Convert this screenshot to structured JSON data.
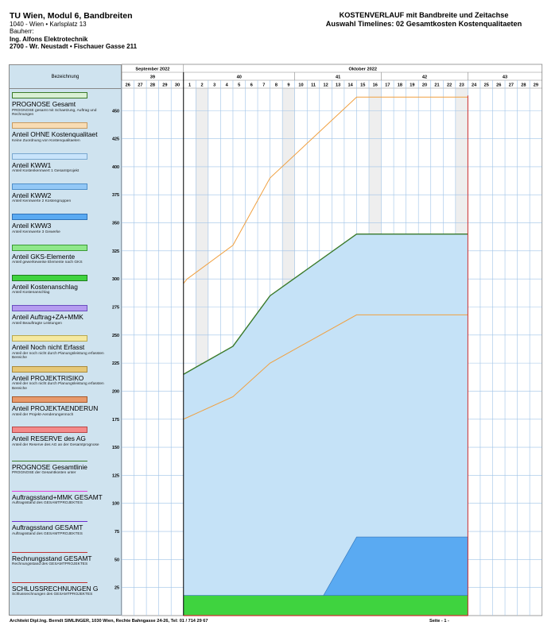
{
  "header": {
    "project": "TU Wien, Modul 6, Bandbreiten",
    "address": "1040 - Wien  •  Karlsplatz 13",
    "owner_label": "Bauherr:",
    "owner": "Ing. Alfons Elektrotechnik",
    "owner_address": "2700 - Wr. Neustadt  •  Fischauer Gasse 211"
  },
  "report": {
    "title": "KOSTENVERLAUF mit Bandbreite und Zeitachse",
    "subtitle": "Auswahl Timelines: 02 Gesamtkosten Kostenqualitaeten"
  },
  "legend": {
    "header": "Bezeichnung",
    "items": [
      {
        "name": "PROGNOSE Gesamt",
        "desc": "PROGNOSE gesamt mit Schaetzung, Auftrag und Rechnungen",
        "kind": "swatch",
        "color": "#d9f0d4",
        "border": "#3a7a2a"
      },
      {
        "name": "Anteil OHNE Kostenqualitaet",
        "desc": "Keine Zuordnung von Kostenqualitaeten",
        "kind": "swatch",
        "color": "#f8dcb4",
        "border": "#c89a60"
      },
      {
        "name": "Anteil KWW1",
        "desc": "Anteil Kostenkennwert 1 Gesamtprojekt",
        "kind": "swatch",
        "color": "#c9e4fb",
        "border": "#7aa8d0"
      },
      {
        "name": "Anteil KWW2",
        "desc": "Anteil Kennwerte 2 Kostengruppen",
        "kind": "swatch",
        "color": "#93c8f6",
        "border": "#4f8fc9"
      },
      {
        "name": "Anteil KWW3",
        "desc": "Anteil Kennwerte 3 Gewerke",
        "kind": "swatch",
        "color": "#5aaaf2",
        "border": "#2f72b8"
      },
      {
        "name": "Anteil GKS-Elemente",
        "desc": "Anteil gewerkeweise Elemente nach GKS",
        "kind": "swatch",
        "color": "#8fe88a",
        "border": "#3a9a36"
      },
      {
        "name": "Anteil Kostenanschlag",
        "desc": "Anteil Kostenanschlag",
        "kind": "swatch",
        "color": "#3fd33f",
        "border": "#1d7d1d"
      },
      {
        "name": "Anteil Auftrag+ZA+MMK",
        "desc": "Anteil Beauftragte Leistungen",
        "kind": "swatch",
        "color": "#b59cf0",
        "border": "#6a4fc0"
      },
      {
        "name": "Anteil Noch nicht Erfasst",
        "desc": "Anteil der noch nicht durch Planungsleistung erfassten Bereiche",
        "kind": "swatch",
        "color": "#f5e9a0",
        "border": "#b8a850"
      },
      {
        "name": "Anteil PROJEKTRISIKO",
        "desc": "Anteil der noch nicht durch Planungsleistung erfassten Bereiche",
        "kind": "swatch",
        "color": "#e6c878",
        "border": "#a98a3c"
      },
      {
        "name": "Anteil PROJEKTAENDERUN",
        "desc": "Anteil der Projekt-Aenderungennoch",
        "kind": "swatch",
        "color": "#e89a6c",
        "border": "#a4582c"
      },
      {
        "name": "Anteil RESERVE des AG",
        "desc": "Anteil der Reserve des AG an der Gesamtprognose",
        "kind": "swatch",
        "color": "#f48a8a",
        "border": "#b84848"
      },
      {
        "name": "PROGNOSE Gesamtlinie",
        "desc": "PROGNOSE der Gesamtkosten unter",
        "kind": "line",
        "color": "#3a7a2a"
      },
      {
        "name": "Auftragsstand+MMK GESAMT",
        "desc": "Auftragsstand des GESAMTPROJEKTES",
        "kind": "line",
        "color": "#e040e0"
      },
      {
        "name": "Auftragsstand GESAMT",
        "desc": "Auftragsstand des GESAMTPROJEKTES",
        "kind": "line",
        "color": "#6a2ad0"
      },
      {
        "name": "Rechnungsstand GESAMT",
        "desc": "Rechnungsstand des GESAMTPROJEKTES",
        "kind": "line",
        "color": "#c03030"
      },
      {
        "name": "SCHLUSSRECHNUNGEN G",
        "desc": "Schlussrechnungen des GESAMTPROJEKTES",
        "kind": "line",
        "color": "#c03030"
      }
    ]
  },
  "footer": {
    "architect": "Architekt Dipl.Ing. Berndt SIMLINGER, 1030 Wien, Rechte Bahngasse 24-26, Tel: 01 / 714 29 67",
    "page": "Seite - 1 -"
  },
  "chart_data": {
    "type": "area",
    "months": [
      {
        "name": "September 2022",
        "from": 26,
        "to": 30
      },
      {
        "name": "Oktober 2022",
        "from": 1,
        "to": 29
      }
    ],
    "weeks": [
      {
        "label": "39",
        "first_day_index": 0,
        "days": 5
      },
      {
        "label": "40",
        "first_day_index": 5,
        "days": 9
      },
      {
        "label": "41",
        "first_day_index": 14,
        "days": 7
      },
      {
        "label": "42",
        "first_day_index": 21,
        "days": 7
      },
      {
        "label": "43",
        "first_day_index": 28,
        "days": 6
      }
    ],
    "days": [
      "26",
      "27",
      "28",
      "29",
      "30",
      "1",
      "2",
      "3",
      "4",
      "5",
      "6",
      "7",
      "8",
      "9",
      "10",
      "11",
      "12",
      "13",
      "14",
      "15",
      "16",
      "17",
      "18",
      "19",
      "20",
      "21",
      "22",
      "23",
      "24",
      "25",
      "26",
      "27",
      "28",
      "29"
    ],
    "weekend_day_indices": [
      6,
      13,
      20,
      27
    ],
    "y_ticks": [
      25,
      50,
      75,
      100,
      125,
      150,
      175,
      200,
      225,
      250,
      275,
      300,
      325,
      350,
      375,
      400,
      425,
      450
    ],
    "ylim": [
      0,
      470
    ],
    "start_marker_index": 5,
    "end_marker_index": 28,
    "series": [
      {
        "name": "PROGNOSE Gesamt",
        "kind": "band_area",
        "color": "#c5e2f7",
        "edge": "#3a7a2a",
        "x": [
          5,
          9,
          12,
          19,
          28
        ],
        "y": [
          215,
          240,
          285,
          340,
          340
        ]
      },
      {
        "name": "Anteil KWW3",
        "kind": "area",
        "color": "#5aaaf2",
        "x": [
          15.4,
          19,
          28
        ],
        "y": [
          0,
          70,
          70
        ]
      },
      {
        "name": "Anteil Kostenanschlag",
        "kind": "area",
        "color": "#3fd33f",
        "x": [
          5,
          28
        ],
        "y": [
          18,
          18
        ]
      },
      {
        "name": "Band oben",
        "kind": "line",
        "color": "#f0a040",
        "x": [
          5,
          5.3,
          9,
          12,
          19,
          28
        ],
        "y": [
          296,
          300,
          330,
          390,
          462,
          462
        ]
      },
      {
        "name": "Band unten",
        "kind": "line",
        "color": "#f0a040",
        "x": [
          5,
          9,
          12,
          19,
          28
        ],
        "y": [
          175,
          195,
          225,
          268,
          268
        ]
      }
    ]
  }
}
